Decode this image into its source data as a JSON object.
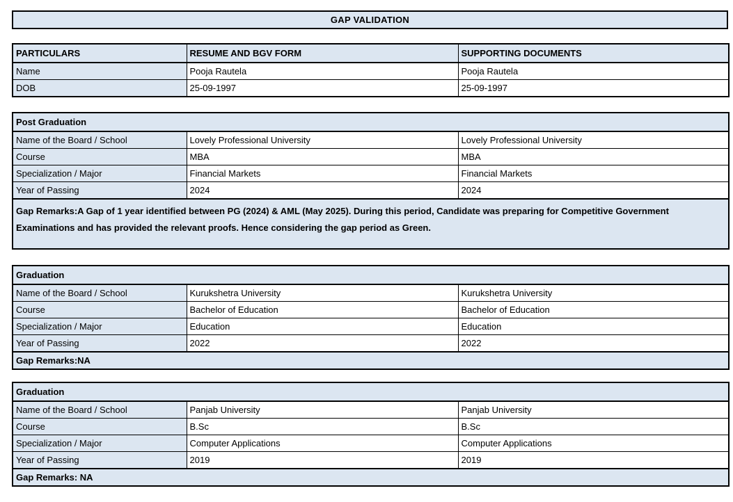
{
  "title": "GAP VALIDATION",
  "colors": {
    "fill_blue": "#dce6f1",
    "border": "#000000",
    "text": "#000000",
    "background": "#ffffff"
  },
  "summary": {
    "headers": [
      "PARTICULARS",
      "RESUME AND BGV FORM",
      "SUPPORTING DOCUMENTS"
    ],
    "rows": [
      {
        "label": "Name",
        "resume": "Pooja Rautela",
        "supporting": "Pooja Rautela"
      },
      {
        "label": "DOB",
        "resume": "25-09-1997",
        "supporting": "25-09-1997"
      }
    ]
  },
  "sections": [
    {
      "heading": "Post Graduation",
      "rows": [
        {
          "label": "Name of the Board / School",
          "resume": "Lovely Professional University",
          "supporting": "Lovely Professional University"
        },
        {
          "label": "Course",
          "resume": "MBA",
          "supporting": "MBA"
        },
        {
          "label": "Specialization / Major",
          "resume": "Financial Markets",
          "supporting": "Financial Markets"
        },
        {
          "label": "Year of Passing",
          "resume": "2024",
          "supporting": "2024"
        }
      ],
      "gap_remarks": "Gap Remarks:A Gap of 1 year identified between PG (2024) & AML (May 2025). During this period, Candidate was preparing for Competitive Government Examinations and has provided the relevant proofs. Hence considering the gap period as Green."
    },
    {
      "heading": "Graduation",
      "rows": [
        {
          "label": "Name of the Board / School",
          "resume": "Kurukshetra University",
          "supporting": "Kurukshetra University"
        },
        {
          "label": "Course",
          "resume": "Bachelor of Education",
          "supporting": "Bachelor of Education"
        },
        {
          "label": "Specialization / Major",
          "resume": "Education",
          "supporting": "Education"
        },
        {
          "label": "Year of Passing",
          "resume": "2022",
          "supporting": "2022"
        }
      ],
      "gap_remarks": "Gap Remarks:NA"
    },
    {
      "heading": "Graduation",
      "rows": [
        {
          "label": "Name of the Board / School",
          "resume": "Panjab University",
          "supporting": "Panjab University"
        },
        {
          "label": "Course",
          "resume": "B.Sc",
          "supporting": "B.Sc"
        },
        {
          "label": "Specialization / Major",
          "resume": "Computer Applications",
          "supporting": "Computer Applications"
        },
        {
          "label": "Year of Passing",
          "resume": "2019",
          "supporting": "2019"
        }
      ],
      "gap_remarks": "Gap Remarks: NA"
    }
  ]
}
